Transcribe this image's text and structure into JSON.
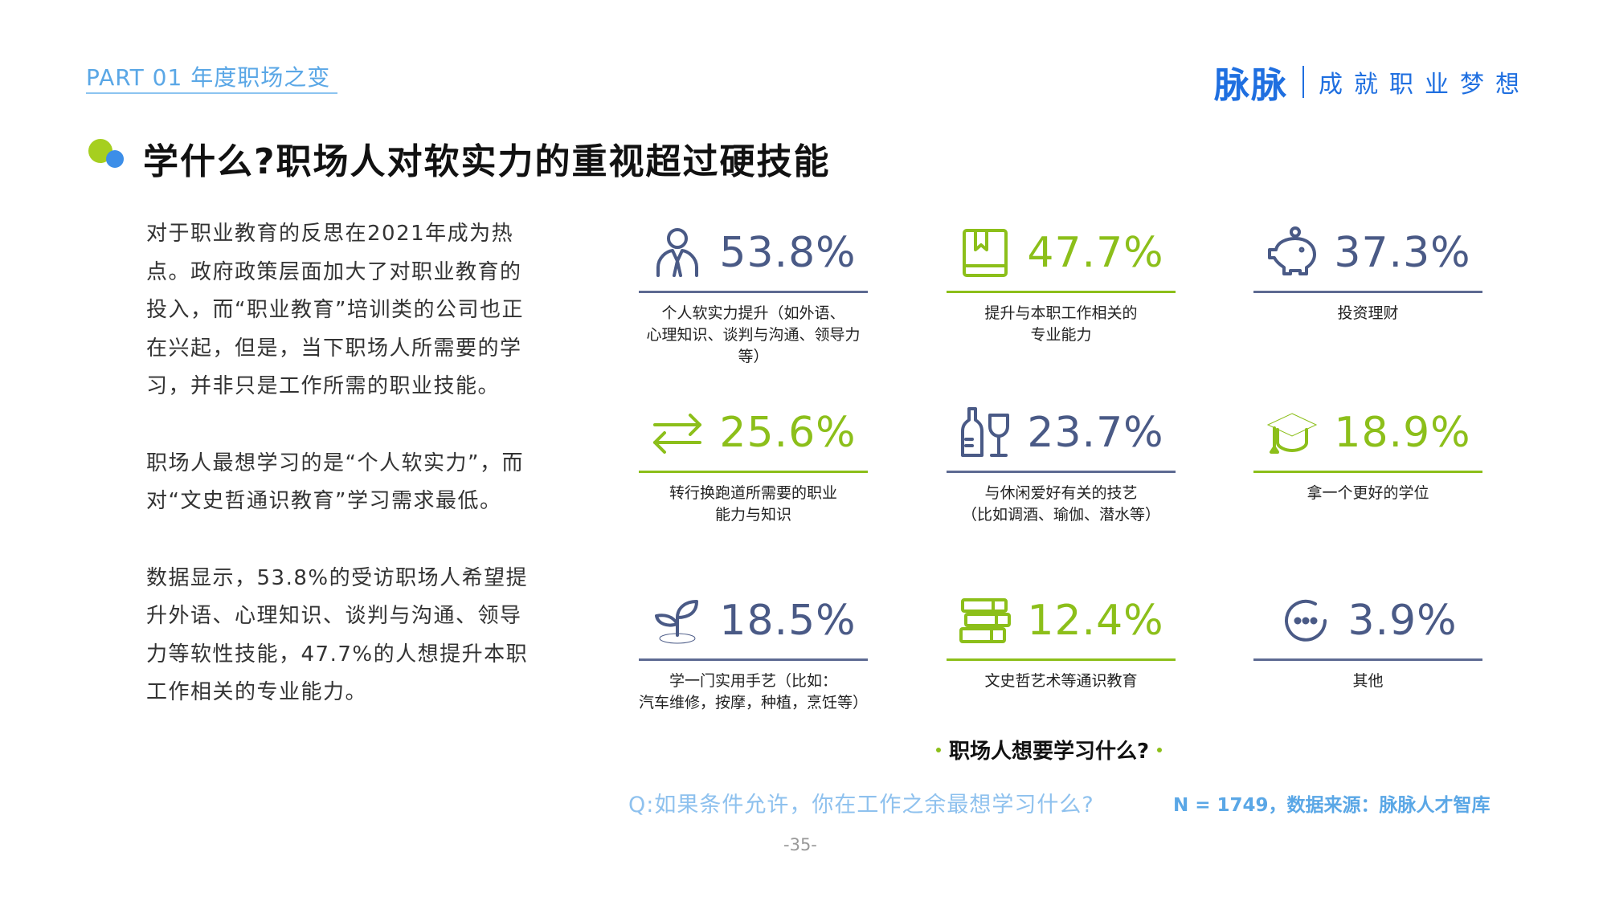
{
  "header": {
    "part_label": "PART 01 年度职场之变",
    "brand_logo": "脉脉",
    "brand_slogan": "成就职业梦想"
  },
  "title": "学什么?职场人对软实力的重视超过硬技能",
  "body_paragraphs": [
    "对于职业教育的反思在2021年成为热点。政府政策层面加大了对职业教育的投入，而“职业教育”培训类的公司也正在兴起，但是，当下职场人所需要的学习，并非只是工作所需的职业技能。",
    "职场人最想学习的是“个人软实力”，而对“文史哲通识教育”学习需求最低。",
    "数据显示，53.8%的受访职场人希望提升外语、心理知识、谈判与沟通、领导力等软性技能，47.7%的人想提升本职工作相关的专业能力。"
  ],
  "stats": [
    {
      "value": "53.8%",
      "label": "个人软实力提升（如外语、\n心理知识、谈判与沟通、领导力等）",
      "icon": "person-tie-icon",
      "color": "blue"
    },
    {
      "value": "47.7%",
      "label": "提升与本职工作相关的\n专业能力",
      "icon": "book-icon",
      "color": "green"
    },
    {
      "value": "37.3%",
      "label": "投资理财",
      "icon": "piggy-bank-icon",
      "color": "blue"
    },
    {
      "value": "25.6%",
      "label": "转行换跑道所需要的职业\n能力与知识",
      "icon": "swap-arrows-icon",
      "color": "green"
    },
    {
      "value": "23.7%",
      "label": "与休闲爱好有关的技艺\n（比如调酒、瑜伽、潜水等）",
      "icon": "wine-bottle-glass-icon",
      "color": "blue"
    },
    {
      "value": "18.9%",
      "label": "拿一个更好的学位",
      "icon": "graduation-cap-icon",
      "color": "green"
    },
    {
      "value": "18.5%",
      "label": "学一门实用手艺（比如：\n汽车维修，按摩，种植，烹饪等）",
      "icon": "sprout-icon",
      "color": "blue"
    },
    {
      "value": "12.4%",
      "label": "文史哲艺术等通识教育",
      "icon": "books-stack-icon",
      "color": "green"
    },
    {
      "value": "3.9%",
      "label": "其他",
      "icon": "ellipsis-circle-icon",
      "color": "blue"
    }
  ],
  "subtitle": "职场人想要学习什么?",
  "question": "Q:如果条件允许，你在工作之余最想学习什么?",
  "source": "N = 1749，数据来源：脉脉人才智库",
  "page_number": "-35-",
  "colors": {
    "blue": "#4a5a86",
    "green": "#8cbf1a",
    "accent": "#1f6fe0"
  }
}
